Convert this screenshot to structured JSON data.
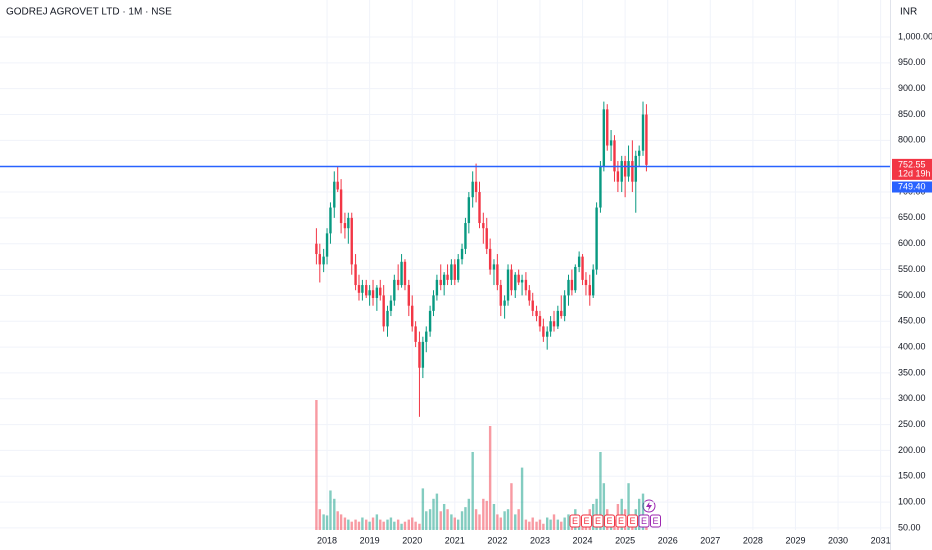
{
  "chart_data": {
    "type": "candlestick",
    "title": "GODREJ AGROVET LTD · 1M · NSE",
    "currency": "INR",
    "x": [
      2017.75,
      2017.83,
      2017.92,
      2018.0,
      2018.08,
      2018.17,
      2018.25,
      2018.33,
      2018.42,
      2018.5,
      2018.58,
      2018.67,
      2018.75,
      2018.83,
      2018.92,
      2019.0,
      2019.08,
      2019.17,
      2019.25,
      2019.33,
      2019.42,
      2019.5,
      2019.58,
      2019.67,
      2019.75,
      2019.83,
      2019.92,
      2020.0,
      2020.08,
      2020.17,
      2020.25,
      2020.33,
      2020.42,
      2020.5,
      2020.58,
      2020.67,
      2020.75,
      2020.83,
      2020.92,
      2021.0,
      2021.08,
      2021.17,
      2021.25,
      2021.33,
      2021.42,
      2021.5,
      2021.58,
      2021.67,
      2021.75,
      2021.83,
      2021.92,
      2022.0,
      2022.08,
      2022.17,
      2022.25,
      2022.33,
      2022.42,
      2022.5,
      2022.58,
      2022.67,
      2022.75,
      2022.83,
      2022.92,
      2023.0,
      2023.08,
      2023.17,
      2023.25,
      2023.33,
      2023.42,
      2023.5,
      2023.58,
      2023.67,
      2023.75,
      2023.83,
      2023.92,
      2024.0,
      2024.08,
      2024.17,
      2024.25,
      2024.33,
      2024.42,
      2024.5,
      2024.58,
      2024.67,
      2024.75,
      2024.83,
      2024.92,
      2025.0,
      2025.08,
      2025.17,
      2025.25,
      2025.33,
      2025.42,
      2025.5
    ],
    "open": [
      600,
      580,
      560,
      575,
      620,
      670,
      720,
      705,
      640,
      630,
      650,
      560,
      520,
      505,
      520,
      500,
      510,
      495,
      515,
      500,
      440,
      470,
      490,
      530,
      520,
      565,
      520,
      480,
      440,
      410,
      360,
      410,
      430,
      470,
      500,
      530,
      520,
      540,
      530,
      560,
      530,
      570,
      590,
      640,
      690,
      720,
      700,
      640,
      630,
      590,
      550,
      560,
      520,
      480,
      490,
      550,
      510,
      540,
      525,
      530,
      510,
      490,
      470,
      460,
      440,
      420,
      430,
      450,
      440,
      470,
      460,
      500,
      530,
      510,
      555,
      575,
      530,
      520,
      500,
      550,
      670,
      750,
      860,
      790,
      800,
      740,
      720,
      760,
      730,
      760,
      720,
      770,
      780,
      850
    ],
    "high": [
      630,
      600,
      590,
      630,
      680,
      740,
      750,
      725,
      660,
      660,
      660,
      580,
      540,
      530,
      530,
      520,
      530,
      520,
      530,
      520,
      480,
      500,
      540,
      560,
      580,
      570,
      530,
      500,
      450,
      430,
      420,
      440,
      480,
      510,
      540,
      560,
      545,
      560,
      570,
      570,
      580,
      600,
      650,
      700,
      740,
      755,
      720,
      660,
      650,
      610,
      570,
      580,
      530,
      500,
      560,
      560,
      545,
      550,
      540,
      545,
      520,
      505,
      480,
      470,
      455,
      440,
      460,
      470,
      480,
      500,
      510,
      540,
      550,
      560,
      585,
      580,
      545,
      540,
      560,
      680,
      760,
      875,
      870,
      820,
      810,
      760,
      770,
      770,
      790,
      800,
      780,
      790,
      875,
      870
    ],
    "low": [
      560,
      525,
      545,
      560,
      600,
      650,
      700,
      620,
      610,
      600,
      540,
      510,
      490,
      490,
      495,
      480,
      480,
      470,
      490,
      430,
      420,
      460,
      480,
      510,
      515,
      510,
      460,
      430,
      400,
      265,
      340,
      390,
      420,
      460,
      490,
      510,
      500,
      520,
      520,
      520,
      525,
      560,
      580,
      620,
      670,
      680,
      630,
      600,
      580,
      540,
      520,
      510,
      460,
      455,
      480,
      500,
      495,
      520,
      500,
      500,
      480,
      460,
      450,
      430,
      410,
      395,
      420,
      430,
      435,
      455,
      450,
      480,
      500,
      505,
      545,
      520,
      500,
      480,
      495,
      540,
      660,
      740,
      780,
      760,
      720,
      700,
      700,
      690,
      720,
      700,
      660,
      750,
      770,
      740
    ],
    "close": [
      580,
      560,
      575,
      620,
      670,
      720,
      705,
      640,
      630,
      650,
      560,
      520,
      505,
      520,
      500,
      510,
      495,
      515,
      500,
      440,
      470,
      490,
      530,
      520,
      565,
      520,
      480,
      440,
      410,
      360,
      410,
      430,
      470,
      500,
      530,
      520,
      540,
      530,
      560,
      530,
      570,
      590,
      640,
      690,
      720,
      700,
      640,
      630,
      590,
      550,
      560,
      520,
      480,
      490,
      550,
      510,
      540,
      525,
      530,
      510,
      490,
      470,
      460,
      440,
      420,
      430,
      450,
      440,
      470,
      460,
      500,
      530,
      510,
      555,
      575,
      530,
      520,
      500,
      550,
      670,
      750,
      860,
      790,
      800,
      740,
      720,
      760,
      730,
      760,
      720,
      770,
      780,
      850,
      752.55
    ],
    "volume": [
      125,
      20,
      15,
      14,
      38,
      30,
      18,
      15,
      12,
      10,
      8,
      10,
      8,
      12,
      10,
      8,
      12,
      15,
      10,
      8,
      10,
      12,
      8,
      10,
      6,
      8,
      10,
      12,
      8,
      6,
      40,
      18,
      20,
      30,
      35,
      18,
      25,
      20,
      15,
      12,
      10,
      18,
      22,
      30,
      75,
      20,
      15,
      30,
      28,
      100,
      25,
      15,
      12,
      18,
      20,
      45,
      15,
      20,
      60,
      10,
      8,
      12,
      8,
      10,
      6,
      12,
      10,
      15,
      10,
      8,
      12,
      15,
      10,
      20,
      12,
      10,
      15,
      20,
      25,
      30,
      75,
      45,
      20,
      15,
      10,
      25,
      30,
      20,
      45,
      15,
      20,
      30,
      35,
      15
    ],
    "up_color": "#089981",
    "down_color": "#f23645",
    "line_color": "#2962ff",
    "xlim": [
      2010.32,
      2031.22
    ],
    "xticks": [
      2018,
      2019,
      2020,
      2021,
      2022,
      2023,
      2024,
      2025,
      2026,
      2027,
      2028,
      2029,
      2030,
      2031
    ],
    "ylim": [
      46,
      1071.6
    ],
    "yticks": [
      {
        "value": 1000,
        "label": "1,000.00"
      },
      {
        "value": 950,
        "label": "950.00"
      },
      {
        "value": 900,
        "label": "900.00"
      },
      {
        "value": 850,
        "label": "850.00"
      },
      {
        "value": 800,
        "label": "800.00"
      },
      {
        "value": 700,
        "label": "700.00"
      },
      {
        "value": 650,
        "label": "650.00"
      },
      {
        "value": 600,
        "label": "600.00"
      },
      {
        "value": 550,
        "label": "550.00"
      },
      {
        "value": 500,
        "label": "500.00"
      },
      {
        "value": 450,
        "label": "450.00"
      },
      {
        "value": 400,
        "label": "400.00"
      },
      {
        "value": 350,
        "label": "350.00"
      },
      {
        "value": 300,
        "label": "300.00"
      },
      {
        "value": 250,
        "label": "250.00"
      },
      {
        "value": 200,
        "label": "200.00"
      },
      {
        "value": 150,
        "label": "150.00"
      },
      {
        "value": 100,
        "label": "100.00"
      },
      {
        "value": 50,
        "label": "50.00"
      }
    ],
    "grid": true,
    "last_price": 752.55,
    "countdown": "12d 19h",
    "line_price": {
      "value": 749.4,
      "label": "749.40"
    },
    "events": [
      "E",
      "E",
      "E",
      "E",
      "E",
      "E",
      "E",
      "E"
    ]
  }
}
